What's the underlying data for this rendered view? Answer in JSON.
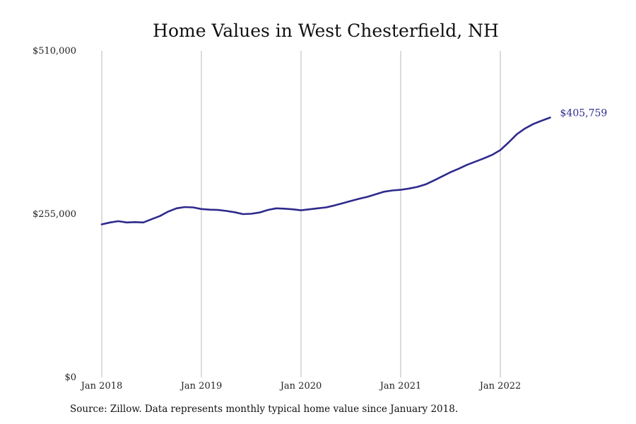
{
  "chart_data": {
    "type": "line",
    "title": "Home Values in West Chesterfield, NH",
    "xlabel": "",
    "ylabel": "",
    "ylim": [
      0,
      510000
    ],
    "yticks": [
      {
        "value": 0,
        "label": "$0"
      },
      {
        "value": 255000,
        "label": "$255,000"
      },
      {
        "value": 510000,
        "label": "$510,000"
      }
    ],
    "xlim": [
      "2018-01",
      "2022-12"
    ],
    "xticks": [
      {
        "date": "2018-01",
        "label": "Jan 2018"
      },
      {
        "date": "2019-01",
        "label": "Jan 2019"
      },
      {
        "date": "2020-01",
        "label": "Jan 2020"
      },
      {
        "date": "2021-01",
        "label": "Jan 2021"
      },
      {
        "date": "2022-01",
        "label": "Jan 2022"
      }
    ],
    "grid": {
      "vertical": true,
      "horizontal": false
    },
    "line_color": "#2e2a8c",
    "series": [
      {
        "x": [
          "2018-01",
          "2018-02",
          "2018-03",
          "2018-04",
          "2018-05",
          "2018-06",
          "2018-07",
          "2018-08",
          "2018-09",
          "2018-10",
          "2018-11",
          "2018-12",
          "2019-01",
          "2019-02",
          "2019-03",
          "2019-04",
          "2019-05",
          "2019-06",
          "2019-07",
          "2019-08",
          "2019-09",
          "2019-10",
          "2019-11",
          "2019-12",
          "2020-01",
          "2020-02",
          "2020-03",
          "2020-04",
          "2020-05",
          "2020-06",
          "2020-07",
          "2020-08",
          "2020-09",
          "2020-10",
          "2020-11",
          "2020-12",
          "2021-01",
          "2021-02",
          "2021-03",
          "2021-04",
          "2021-05",
          "2021-06",
          "2021-07",
          "2021-08",
          "2021-09",
          "2021-10",
          "2021-11",
          "2021-12",
          "2022-01",
          "2022-02",
          "2022-03",
          "2022-04",
          "2022-05",
          "2022-06",
          "2022-07"
        ],
        "values": [
          239000,
          242000,
          244000,
          242000,
          242500,
          242000,
          247000,
          252000,
          259000,
          264000,
          266000,
          265500,
          263000,
          262000,
          261500,
          260000,
          258000,
          255000,
          255500,
          257500,
          261500,
          264000,
          263500,
          262500,
          261000,
          262500,
          264000,
          265500,
          268500,
          272000,
          275500,
          279000,
          282000,
          286000,
          290000,
          292000,
          293000,
          295000,
          297500,
          301500,
          307500,
          314000,
          320500,
          326000,
          332000,
          337000,
          342000,
          347500,
          355000,
          367000,
          380000,
          389000,
          396000,
          401000,
          405759
        ]
      }
    ],
    "end_label": "$405,759",
    "source": "Source: Zillow. Data represents monthly typical home value since January 2018."
  }
}
